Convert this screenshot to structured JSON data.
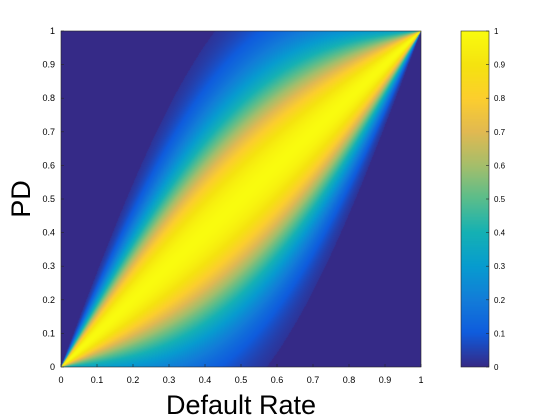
{
  "chart_data": {
    "type": "heatmap",
    "title": "",
    "xlabel": "Default Rate",
    "ylabel": "PD",
    "xlim": [
      0,
      1
    ],
    "ylim": [
      0,
      1
    ],
    "xticks": [
      "0",
      "0.1",
      "0.2",
      "0.3",
      "0.4",
      "0.5",
      "0.6",
      "0.7",
      "0.8",
      "0.9",
      "1"
    ],
    "yticks": [
      "0",
      "0.1",
      "0.2",
      "0.3",
      "0.4",
      "0.5",
      "0.6",
      "0.7",
      "0.8",
      "0.9",
      "1"
    ],
    "colorbar": {
      "range": [
        0,
        1
      ],
      "ticks": [
        "0",
        "0.1",
        "0.2",
        "0.3",
        "0.4",
        "0.5",
        "0.6",
        "0.7",
        "0.8",
        "0.9",
        "1"
      ],
      "colormap": "parula"
    },
    "grid": false,
    "band": {
      "description": "intensity peaks along the diagonal PD = Default Rate, pinched to zero width at (0,0) and (1,1)",
      "peak_value": 1,
      "background_value": 0
    },
    "colors": {
      "low": "#352a87",
      "high": "#f9fb0e"
    }
  }
}
